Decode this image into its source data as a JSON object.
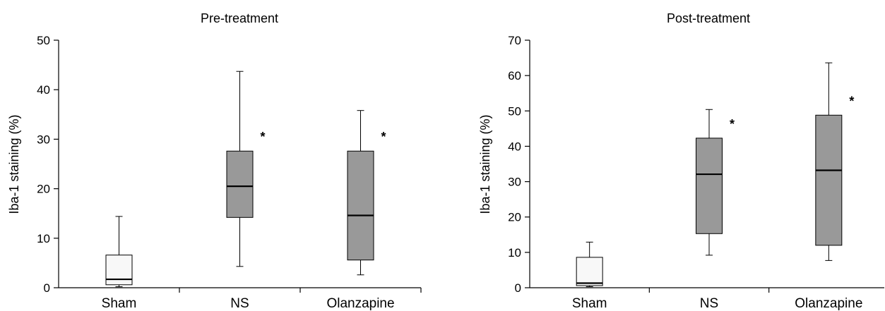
{
  "chart_data": [
    {
      "type": "box",
      "title": "Pre-treatment",
      "ylabel": "Iba-1 staining (%)",
      "xlabel": "",
      "ylim": [
        0,
        50
      ],
      "yticks": [
        "0",
        "10",
        "20",
        "30",
        "40",
        "50"
      ],
      "categories": [
        "Sham",
        "NS",
        "Olanzapine"
      ],
      "boxes": [
        {
          "category": "Sham",
          "min": 0.2,
          "q1": 0.6,
          "median": 1.7,
          "q3": 6.6,
          "max": 14.4,
          "fill": "#f8f8f8",
          "marker": ""
        },
        {
          "category": "NS",
          "min": 4.3,
          "q1": 14.2,
          "median": 20.5,
          "q3": 27.6,
          "max": 43.7,
          "fill": "#999999",
          "marker": "*"
        },
        {
          "category": "Olanzapine",
          "min": 2.6,
          "q1": 5.6,
          "median": 14.6,
          "q3": 27.6,
          "max": 35.8,
          "fill": "#999999",
          "marker": "*"
        }
      ]
    },
    {
      "type": "box",
      "title": "Post-treatment",
      "ylabel": "Iba-1 staining (%)",
      "xlabel": "",
      "ylim": [
        0,
        70
      ],
      "yticks": [
        "0",
        "10",
        "20",
        "30",
        "40",
        "50",
        "60",
        "70"
      ],
      "categories": [
        "Sham",
        "NS",
        "Olanzapine"
      ],
      "boxes": [
        {
          "category": "Sham",
          "min": 0.3,
          "q1": 0.6,
          "median": 1.3,
          "q3": 8.6,
          "max": 12.9,
          "fill": "#f8f8f8",
          "marker": ""
        },
        {
          "category": "NS",
          "min": 9.2,
          "q1": 15.3,
          "median": 32.1,
          "q3": 42.3,
          "max": 50.4,
          "fill": "#999999",
          "marker": "*"
        },
        {
          "category": "Olanzapine",
          "min": 7.7,
          "q1": 12.0,
          "median": 33.2,
          "q3": 48.8,
          "max": 63.6,
          "fill": "#999999",
          "marker": "*"
        }
      ]
    }
  ]
}
